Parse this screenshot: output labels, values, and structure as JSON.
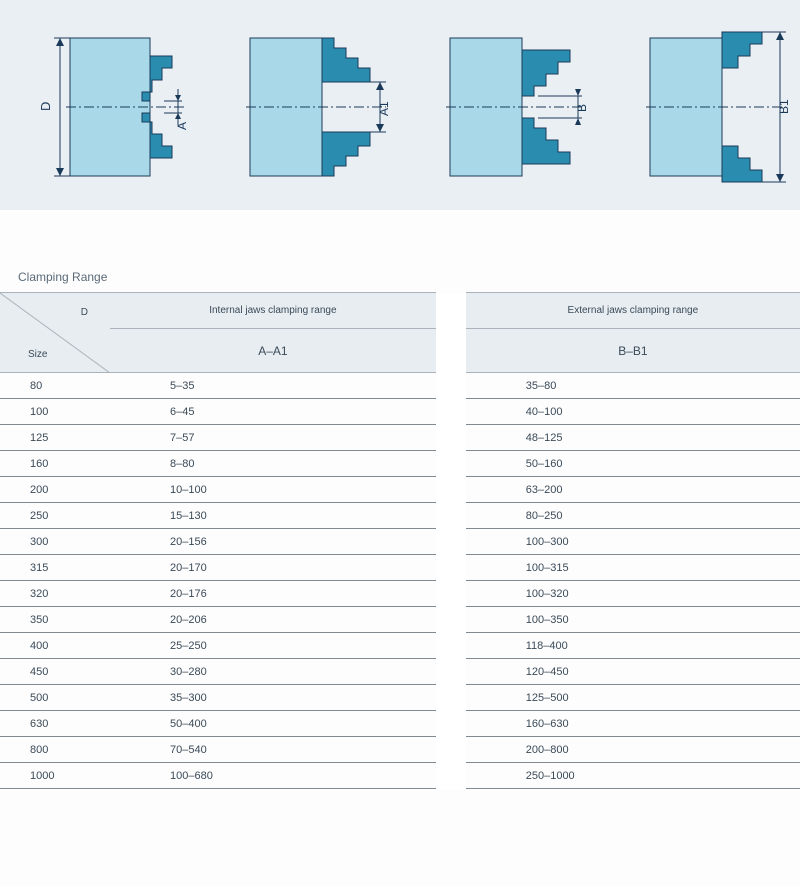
{
  "diagrams": {
    "bg_color": "#eaeff3",
    "body_color": "#a9d9e8",
    "jaw_color": "#2a8db0",
    "line_color": "#1a3a5a",
    "items": [
      {
        "id": "A",
        "body_label": "D",
        "gap_label": "A"
      },
      {
        "id": "A1",
        "body_label": "",
        "gap_label": "A1"
      },
      {
        "id": "B",
        "body_label": "",
        "gap_label": "B"
      },
      {
        "id": "B1",
        "body_label": "",
        "gap_label": "B1"
      }
    ]
  },
  "section_title": "Clamping Range",
  "table": {
    "header_bg": "#e8edf1",
    "border_color": "#aab3bb",
    "row_line_color": "#7f8a93",
    "size_header_top": "D",
    "size_header_bottom": "Size",
    "internal_header": "Internal jaws clamping range",
    "external_header": "External jaws clamping range",
    "internal_sub": "A–A1",
    "external_sub": "B–B1",
    "rows": [
      {
        "size": "80",
        "a": "5–35",
        "b": "35–80"
      },
      {
        "size": "100",
        "a": "6–45",
        "b": "40–100"
      },
      {
        "size": "125",
        "a": "7–57",
        "b": "48–125"
      },
      {
        "size": "160",
        "a": "8–80",
        "b": "50–160"
      },
      {
        "size": "200",
        "a": "10–100",
        "b": "63–200"
      },
      {
        "size": "250",
        "a": "15–130",
        "b": "80–250"
      },
      {
        "size": "300",
        "a": "20–156",
        "b": "100–300"
      },
      {
        "size": "315",
        "a": "20–170",
        "b": "100–315"
      },
      {
        "size": "320",
        "a": "20–176",
        "b": "100–320"
      },
      {
        "size": "350",
        "a": "20–206",
        "b": "100–350"
      },
      {
        "size": "400",
        "a": "25–250",
        "b": "118–400"
      },
      {
        "size": "450",
        "a": "30–280",
        "b": "120–450"
      },
      {
        "size": "500",
        "a": "35–300",
        "b": "125–500"
      },
      {
        "size": "630",
        "a": "50–400",
        "b": "160–630"
      },
      {
        "size": "800",
        "a": "70–540",
        "b": "200–800"
      },
      {
        "size": "1000",
        "a": "100–680",
        "b": "250–1000"
      }
    ]
  }
}
